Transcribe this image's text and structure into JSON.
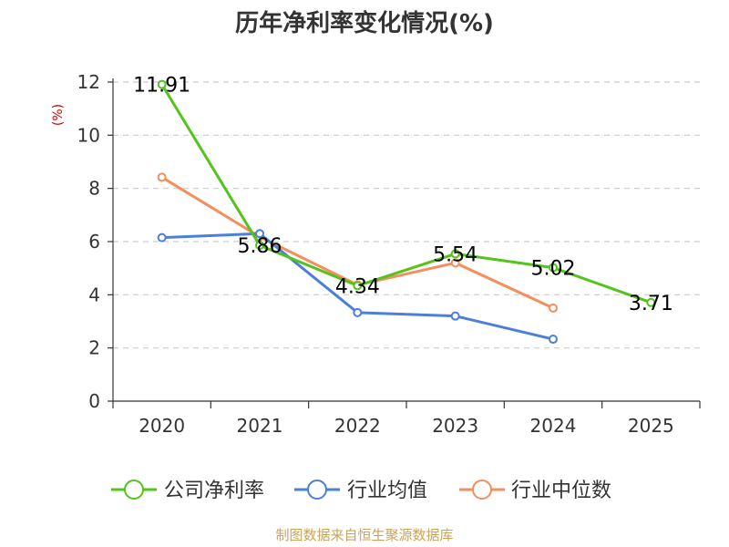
{
  "chart_data": {
    "type": "line",
    "title": "历年净利率变化情况(%)",
    "ylabel": "(%)",
    "xlabel": "",
    "categories": [
      "2020",
      "2021",
      "2022",
      "2023",
      "2024",
      "2025"
    ],
    "ylim": [
      0,
      12
    ],
    "yticks": [
      0,
      2,
      4,
      6,
      8,
      10,
      12
    ],
    "grid": true,
    "legend_position": "bottom",
    "series": [
      {
        "name": "公司净利率",
        "color": "#52c41a",
        "values": [
          11.91,
          5.86,
          4.34,
          5.54,
          5.02,
          3.71
        ],
        "labels": [
          "11.91",
          "5.86",
          "4.34",
          "5.54",
          "5.02",
          "3.71"
        ],
        "label_dx": [
          0,
          0,
          0,
          0,
          0,
          0
        ]
      },
      {
        "name": "行业均值",
        "color": "#4a7fdb",
        "values": [
          6.15,
          6.3,
          3.33,
          3.2,
          2.33,
          null
        ]
      },
      {
        "name": "行业中位数",
        "color": "#f58d5c",
        "values": [
          8.42,
          6.18,
          4.37,
          5.2,
          3.5,
          null
        ]
      }
    ],
    "source": "制图数据来自恒生聚源数据库",
    "source_color": "#c8a45a",
    "ylabel_color": "#cc0000"
  }
}
